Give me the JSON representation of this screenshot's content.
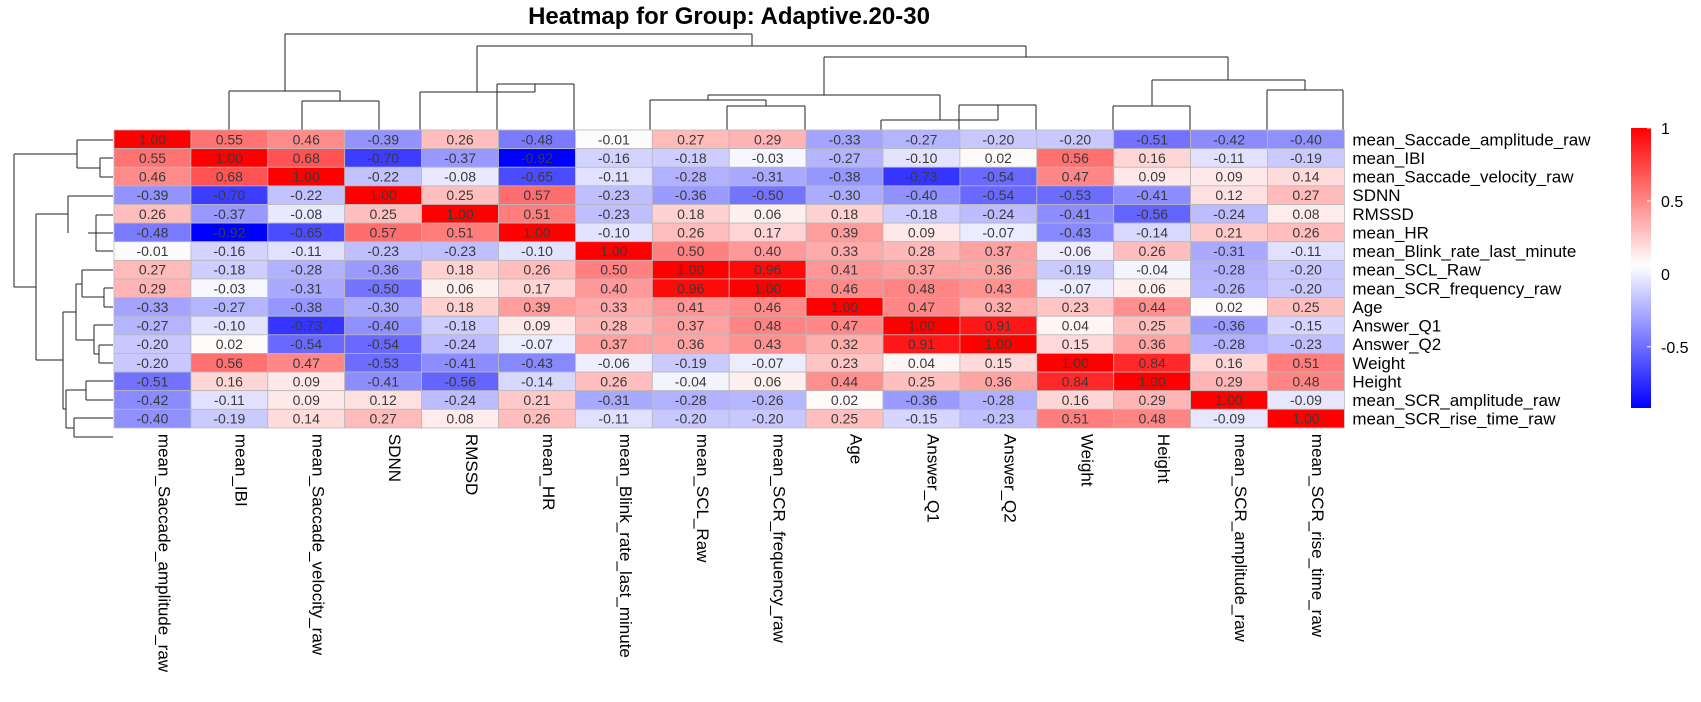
{
  "chart_data": {
    "type": "heatmap",
    "title": "Heatmap for Group: Adaptive.20-30",
    "rows": [
      "mean_Saccade_amplitude_raw",
      "mean_IBI",
      "mean_Saccade_velocity_raw",
      "SDNN",
      "RMSSD",
      "mean_HR",
      "mean_Blink_rate_last_minute",
      "mean_SCL_Raw",
      "mean_SCR_frequency_raw",
      "Age",
      "Answer_Q1",
      "Answer_Q2",
      "Weight",
      "Height",
      "mean_SCR_amplitude_raw",
      "mean_SCR_rise_time_raw"
    ],
    "columns": [
      "mean_Saccade_amplitude_raw",
      "mean_IBI",
      "mean_Saccade_velocity_raw",
      "SDNN",
      "RMSSD",
      "mean_HR",
      "mean_Blink_rate_last_minute",
      "mean_SCL_Raw",
      "mean_SCR_frequency_raw",
      "Age",
      "Answer_Q1",
      "Answer_Q2",
      "Weight",
      "Height",
      "mean_SCR_amplitude_raw",
      "mean_SCR_rise_time_raw"
    ],
    "values": [
      [
        1.0,
        0.55,
        0.46,
        -0.39,
        0.26,
        -0.48,
        -0.01,
        0.27,
        0.29,
        -0.33,
        -0.27,
        -0.2,
        -0.2,
        -0.51,
        -0.42,
        -0.4
      ],
      [
        0.55,
        1.0,
        0.68,
        -0.7,
        -0.37,
        -0.92,
        -0.16,
        -0.18,
        -0.03,
        -0.27,
        -0.1,
        0.02,
        0.56,
        0.16,
        -0.11,
        -0.19
      ],
      [
        0.46,
        0.68,
        1.0,
        -0.22,
        -0.08,
        -0.65,
        -0.11,
        -0.28,
        -0.31,
        -0.38,
        -0.73,
        -0.54,
        0.47,
        0.09,
        0.09,
        0.14
      ],
      [
        -0.39,
        -0.7,
        -0.22,
        1.0,
        0.25,
        0.57,
        -0.23,
        -0.36,
        -0.5,
        -0.3,
        -0.4,
        -0.54,
        -0.53,
        -0.41,
        0.12,
        0.27
      ],
      [
        0.26,
        -0.37,
        -0.08,
        0.25,
        1.0,
        0.51,
        -0.23,
        0.18,
        0.06,
        0.18,
        -0.18,
        -0.24,
        -0.41,
        -0.56,
        -0.24,
        0.08
      ],
      [
        -0.48,
        -0.92,
        -0.65,
        0.57,
        0.51,
        1.0,
        -0.1,
        0.26,
        0.17,
        0.39,
        0.09,
        -0.07,
        -0.43,
        -0.14,
        0.21,
        0.26
      ],
      [
        -0.01,
        -0.16,
        -0.11,
        -0.23,
        -0.23,
        -0.1,
        1.0,
        0.5,
        0.4,
        0.33,
        0.28,
        0.37,
        -0.06,
        0.26,
        -0.31,
        -0.11
      ],
      [
        0.27,
        -0.18,
        -0.28,
        -0.36,
        0.18,
        0.26,
        0.5,
        1.0,
        0.96,
        0.41,
        0.37,
        0.36,
        -0.19,
        -0.04,
        -0.28,
        -0.2
      ],
      [
        0.29,
        -0.03,
        -0.31,
        -0.5,
        0.06,
        0.17,
        0.4,
        0.96,
        1.0,
        0.46,
        0.48,
        0.43,
        -0.07,
        0.06,
        -0.26,
        -0.2
      ],
      [
        -0.33,
        -0.27,
        -0.38,
        -0.3,
        0.18,
        0.39,
        0.33,
        0.41,
        0.46,
        1.0,
        0.47,
        0.32,
        0.23,
        0.44,
        0.02,
        0.25
      ],
      [
        -0.27,
        -0.1,
        -0.73,
        -0.4,
        -0.18,
        0.09,
        0.28,
        0.37,
        0.48,
        0.47,
        1.0,
        0.91,
        0.04,
        0.25,
        -0.36,
        -0.15
      ],
      [
        -0.2,
        0.02,
        -0.54,
        -0.54,
        -0.24,
        -0.07,
        0.37,
        0.36,
        0.43,
        0.32,
        0.91,
        1.0,
        0.15,
        0.36,
        -0.28,
        -0.23
      ],
      [
        -0.2,
        0.56,
        0.47,
        -0.53,
        -0.41,
        -0.43,
        -0.06,
        -0.19,
        -0.07,
        0.23,
        0.04,
        0.15,
        1.0,
        0.84,
        0.16,
        0.51
      ],
      [
        -0.51,
        0.16,
        0.09,
        -0.41,
        -0.56,
        -0.14,
        0.26,
        -0.04,
        0.06,
        0.44,
        0.25,
        0.36,
        0.84,
        1.0,
        0.29,
        0.48
      ],
      [
        -0.42,
        -0.11,
        0.09,
        0.12,
        -0.24,
        0.21,
        -0.31,
        -0.28,
        -0.26,
        0.02,
        -0.36,
        -0.28,
        0.16,
        0.29,
        1.0,
        -0.09
      ],
      [
        -0.4,
        -0.19,
        0.14,
        0.27,
        0.08,
        0.26,
        -0.11,
        -0.2,
        -0.2,
        0.25,
        -0.15,
        -0.23,
        0.51,
        0.48,
        -0.09,
        1.0
      ]
    ],
    "color_scale": {
      "min": -0.92,
      "max": 1.0,
      "low": "#0000ff",
      "mid": "#ffffff",
      "high": "#ff0000"
    },
    "legend": {
      "ticks": [
        1,
        0.5,
        0,
        -0.5
      ],
      "tick_labels": [
        "1",
        "0.5",
        "0",
        "-0.5"
      ],
      "placement": "right"
    },
    "cell_labels": "values shown in each cell, two decimals",
    "dendrogram_rows": "left",
    "dendrogram_columns": "top"
  }
}
